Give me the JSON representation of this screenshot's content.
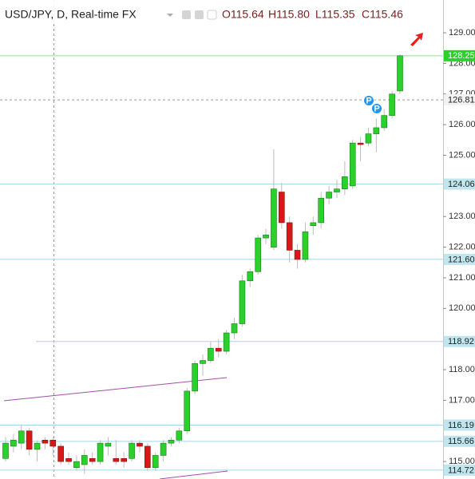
{
  "chart_data": {
    "type": "candlestick",
    "title": "USD/JPY, D, Real-time FX",
    "ohlc_labels": [
      "O115.64",
      "H115.80",
      "L115.35",
      "C115.46"
    ],
    "ylim": [
      114.43,
      130.07
    ],
    "yticks": [
      {
        "value": 115,
        "label": "115.00"
      },
      {
        "value": 117,
        "label": "117.00"
      },
      {
        "value": 118,
        "label": "118.00"
      },
      {
        "value": 120,
        "label": "120.00"
      },
      {
        "value": 121,
        "label": "121.00"
      },
      {
        "value": 122,
        "label": "122.00"
      },
      {
        "value": 123,
        "label": "123.00"
      },
      {
        "value": 125,
        "label": "125.00"
      },
      {
        "value": 126,
        "label": "126.00"
      },
      {
        "value": 127,
        "label": "127.00"
      },
      {
        "value": 128,
        "label": "128.00"
      },
      {
        "value": 129,
        "label": "129.00"
      }
    ],
    "up_color": "#2bd12b",
    "down_color": "#d81818",
    "open": [
      115.1,
      115.5,
      115.6,
      116.0,
      115.4,
      115.7,
      115.7,
      115.5,
      115.1,
      114.8,
      114.9,
      115.1,
      115.0,
      115.5,
      115.1,
      115.1,
      115.1,
      115.6,
      115.5,
      114.8,
      115.2,
      115.6,
      115.7,
      116.0,
      117.3,
      118.2,
      118.3,
      118.7,
      118.6,
      119.2,
      119.5,
      120.9,
      121.2,
      122.3,
      122.0,
      123.8,
      122.8,
      121.9,
      121.6,
      122.7,
      122.8,
      123.6,
      123.8,
      123.9,
      124.0,
      125.4,
      125.4,
      125.7,
      125.9,
      126.3,
      127.1
    ],
    "high": [
      115.8,
      115.9,
      116.2,
      116.1,
      115.7,
      115.8,
      115.8,
      115.6,
      115.3,
      115.2,
      115.4,
      115.3,
      115.7,
      115.8,
      115.7,
      115.3,
      115.7,
      115.7,
      115.6,
      115.3,
      115.7,
      115.8,
      116.1,
      117.4,
      118.3,
      118.5,
      118.9,
      119.0,
      119.3,
      119.7,
      121.1,
      121.3,
      122.4,
      122.6,
      125.2,
      124.1,
      123.0,
      122.1,
      122.8,
      123.0,
      123.8,
      124.0,
      124.2,
      124.8,
      125.5,
      125.6,
      125.9,
      126.2,
      126.5,
      127.1,
      128.3
    ],
    "low": [
      115.0,
      115.3,
      115.4,
      115.2,
      115.0,
      115.4,
      115.2,
      114.9,
      114.9,
      114.7,
      114.6,
      114.9,
      114.9,
      115.2,
      114.9,
      114.8,
      115.0,
      115.3,
      114.7,
      114.7,
      115.0,
      115.5,
      115.6,
      115.9,
      117.2,
      117.8,
      118.2,
      118.4,
      118.5,
      119.0,
      119.4,
      120.7,
      121.1,
      122.1,
      121.9,
      122.6,
      121.5,
      121.3,
      121.5,
      122.4,
      122.6,
      123.4,
      123.6,
      123.7,
      123.9,
      124.8,
      125.3,
      125.1,
      125.8,
      126.2,
      127.0
    ],
    "close": [
      115.6,
      115.7,
      116.0,
      115.4,
      115.6,
      115.6,
      115.5,
      115.0,
      115.0,
      115.0,
      115.2,
      115.0,
      115.6,
      115.6,
      115.0,
      115.0,
      115.6,
      115.5,
      114.8,
      115.2,
      115.6,
      115.7,
      116.0,
      117.3,
      118.2,
      118.3,
      118.7,
      118.6,
      119.2,
      119.5,
      120.9,
      121.2,
      122.3,
      122.4,
      123.9,
      122.8,
      121.9,
      121.6,
      122.5,
      122.8,
      123.6,
      123.8,
      123.9,
      124.3,
      125.4,
      125.35,
      125.7,
      125.9,
      126.3,
      127.0,
      128.25
    ],
    "levels": {
      "values": [
        128.25,
        126.81,
        124.06,
        121.6,
        118.92,
        116.19,
        115.66,
        114.72
      ],
      "value_labels": [
        "128.25",
        "126.81",
        "124.06",
        "121.60",
        "118.92",
        "116.19",
        "115.66",
        "114.72"
      ]
    },
    "markers": [
      "P",
      "P"
    ]
  }
}
